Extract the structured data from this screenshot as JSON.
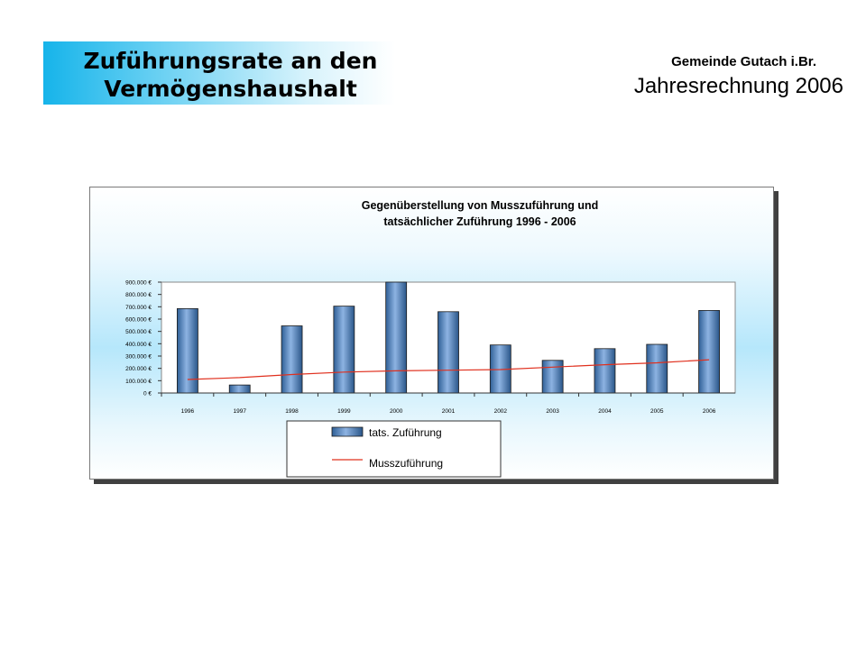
{
  "header": {
    "title_line1": "Zuführungsrate an den",
    "title_line2": "Vermögenshaushalt",
    "org": "Gemeinde Gutach i.Br.",
    "doc": "Jahresrechnung 2006"
  },
  "colors": {
    "banner": "#16b4ea",
    "bar_fill": "#4f81bd",
    "line": "#e0301e"
  },
  "chart_data": {
    "type": "bar",
    "title_line1": "Gegenüberstellung von Musszuführung und",
    "title_line2": "tatsächlicher Zuführung 1996 - 2006",
    "categories": [
      "1996",
      "1997",
      "1998",
      "1999",
      "2000",
      "2001",
      "2002",
      "2003",
      "2004",
      "2005",
      "2006"
    ],
    "ylim": [
      0,
      900000
    ],
    "yticks": [
      0,
      100000,
      200000,
      300000,
      400000,
      500000,
      600000,
      700000,
      800000,
      900000
    ],
    "ytick_labels": [
      "0 €",
      "100.000 €",
      "200.000 €",
      "300.000 €",
      "400.000 €",
      "500.000 €",
      "600.000 €",
      "700.000 €",
      "800.000 €",
      "900.000 €"
    ],
    "series": [
      {
        "name": "tats. Zuführung",
        "kind": "bar",
        "values": [
          685000,
          65000,
          545000,
          705000,
          900000,
          660000,
          390000,
          265000,
          360000,
          395000,
          670000
        ]
      },
      {
        "name": "Musszuführung",
        "kind": "line",
        "values": [
          110000,
          125000,
          150000,
          170000,
          180000,
          185000,
          190000,
          210000,
          230000,
          245000,
          270000
        ]
      }
    ],
    "legend": "bottom-center",
    "grid": false
  }
}
